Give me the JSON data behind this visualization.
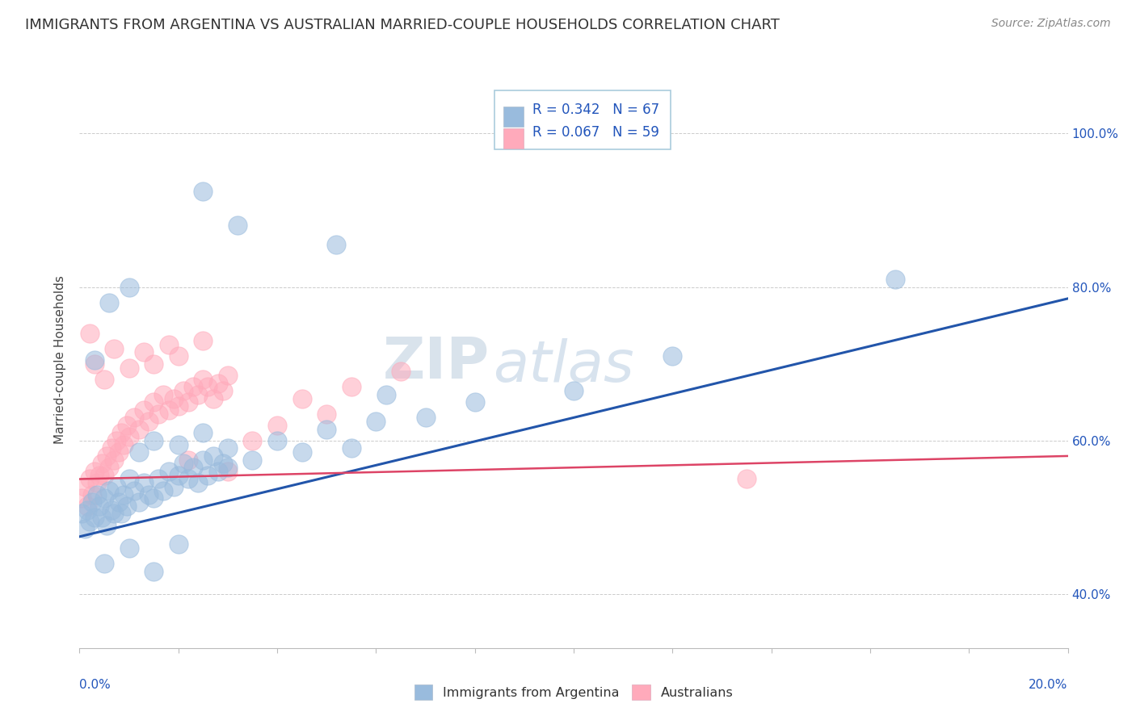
{
  "title": "IMMIGRANTS FROM ARGENTINA VS AUSTRALIAN MARRIED-COUPLE HOUSEHOLDS CORRELATION CHART",
  "source": "Source: ZipAtlas.com",
  "ylabel": "Married-couple Households",
  "legend_blue_r": "R = 0.342",
  "legend_blue_n": "N = 67",
  "legend_pink_r": "R = 0.067",
  "legend_pink_n": "N = 59",
  "legend_blue_label": "Immigrants from Argentina",
  "legend_pink_label": "Australians",
  "blue_color": "#99BBDD",
  "pink_color": "#FFAABB",
  "blue_line_color": "#2255AA",
  "pink_line_color": "#DD4466",
  "text_blue_color": "#2255BB",
  "watermark1": "ZIP",
  "watermark2": "atlas",
  "blue_scatter": [
    [
      0.05,
      50.5
    ],
    [
      0.1,
      48.5
    ],
    [
      0.15,
      51.0
    ],
    [
      0.2,
      49.5
    ],
    [
      0.25,
      52.0
    ],
    [
      0.3,
      50.0
    ],
    [
      0.35,
      53.0
    ],
    [
      0.4,
      51.5
    ],
    [
      0.45,
      50.0
    ],
    [
      0.5,
      52.5
    ],
    [
      0.55,
      49.0
    ],
    [
      0.6,
      53.5
    ],
    [
      0.65,
      51.0
    ],
    [
      0.7,
      50.5
    ],
    [
      0.75,
      54.0
    ],
    [
      0.8,
      52.0
    ],
    [
      0.85,
      50.5
    ],
    [
      0.9,
      53.0
    ],
    [
      0.95,
      51.5
    ],
    [
      1.0,
      55.0
    ],
    [
      1.1,
      53.5
    ],
    [
      1.2,
      52.0
    ],
    [
      1.3,
      54.5
    ],
    [
      1.4,
      53.0
    ],
    [
      1.5,
      52.5
    ],
    [
      1.6,
      55.0
    ],
    [
      1.7,
      53.5
    ],
    [
      1.8,
      56.0
    ],
    [
      1.9,
      54.0
    ],
    [
      2.0,
      55.5
    ],
    [
      2.1,
      57.0
    ],
    [
      2.2,
      55.0
    ],
    [
      2.3,
      56.5
    ],
    [
      2.4,
      54.5
    ],
    [
      2.5,
      57.5
    ],
    [
      2.6,
      55.5
    ],
    [
      2.7,
      58.0
    ],
    [
      2.8,
      56.0
    ],
    [
      2.9,
      57.0
    ],
    [
      3.0,
      56.5
    ],
    [
      1.2,
      58.5
    ],
    [
      1.5,
      60.0
    ],
    [
      2.0,
      59.5
    ],
    [
      2.5,
      61.0
    ],
    [
      3.0,
      59.0
    ],
    [
      3.5,
      57.5
    ],
    [
      4.0,
      60.0
    ],
    [
      4.5,
      58.5
    ],
    [
      5.0,
      61.5
    ],
    [
      5.5,
      59.0
    ],
    [
      6.0,
      62.5
    ],
    [
      7.0,
      63.0
    ],
    [
      8.0,
      65.0
    ],
    [
      10.0,
      66.5
    ],
    [
      12.0,
      71.0
    ],
    [
      16.5,
      81.0
    ],
    [
      0.3,
      70.5
    ],
    [
      0.6,
      78.0
    ],
    [
      1.0,
      80.0
    ],
    [
      2.5,
      92.5
    ],
    [
      3.2,
      88.0
    ],
    [
      5.2,
      85.5
    ],
    [
      6.2,
      66.0
    ],
    [
      0.5,
      44.0
    ],
    [
      1.0,
      46.0
    ],
    [
      1.5,
      43.0
    ],
    [
      2.0,
      46.5
    ]
  ],
  "pink_scatter": [
    [
      0.05,
      52.5
    ],
    [
      0.1,
      54.0
    ],
    [
      0.15,
      51.5
    ],
    [
      0.2,
      55.0
    ],
    [
      0.25,
      53.0
    ],
    [
      0.3,
      56.0
    ],
    [
      0.35,
      54.5
    ],
    [
      0.4,
      55.5
    ],
    [
      0.45,
      57.0
    ],
    [
      0.5,
      55.5
    ],
    [
      0.55,
      58.0
    ],
    [
      0.6,
      56.5
    ],
    [
      0.65,
      59.0
    ],
    [
      0.7,
      57.5
    ],
    [
      0.75,
      60.0
    ],
    [
      0.8,
      58.5
    ],
    [
      0.85,
      61.0
    ],
    [
      0.9,
      59.5
    ],
    [
      0.95,
      62.0
    ],
    [
      1.0,
      60.5
    ],
    [
      1.1,
      63.0
    ],
    [
      1.2,
      61.5
    ],
    [
      1.3,
      64.0
    ],
    [
      1.4,
      62.5
    ],
    [
      1.5,
      65.0
    ],
    [
      1.6,
      63.5
    ],
    [
      1.7,
      66.0
    ],
    [
      1.8,
      64.0
    ],
    [
      1.9,
      65.5
    ],
    [
      2.0,
      64.5
    ],
    [
      2.1,
      66.5
    ],
    [
      2.2,
      65.0
    ],
    [
      2.3,
      67.0
    ],
    [
      2.4,
      66.0
    ],
    [
      2.5,
      68.0
    ],
    [
      2.6,
      67.0
    ],
    [
      2.7,
      65.5
    ],
    [
      2.8,
      67.5
    ],
    [
      2.9,
      66.5
    ],
    [
      3.0,
      68.5
    ],
    [
      0.3,
      70.0
    ],
    [
      0.5,
      68.0
    ],
    [
      0.7,
      72.0
    ],
    [
      1.0,
      69.5
    ],
    [
      1.3,
      71.5
    ],
    [
      1.5,
      70.0
    ],
    [
      1.8,
      72.5
    ],
    [
      2.0,
      71.0
    ],
    [
      2.5,
      73.0
    ],
    [
      0.2,
      74.0
    ],
    [
      3.5,
      60.0
    ],
    [
      4.0,
      62.0
    ],
    [
      4.5,
      65.5
    ],
    [
      5.0,
      63.5
    ],
    [
      5.5,
      67.0
    ],
    [
      6.5,
      69.0
    ],
    [
      3.0,
      56.0
    ],
    [
      2.2,
      57.5
    ],
    [
      13.5,
      55.0
    ]
  ],
  "blue_line": {
    "x0": 0.0,
    "y0": 47.5,
    "x1": 20.0,
    "y1": 78.5
  },
  "pink_line": {
    "x0": 0.0,
    "y0": 55.0,
    "x1": 20.0,
    "y1": 58.0
  },
  "xmin": 0.0,
  "xmax": 20.0,
  "ymin": 33.0,
  "ymax": 108.0,
  "y_ticks": [
    40.0,
    60.0,
    80.0,
    100.0
  ],
  "title_fontsize": 13,
  "source_fontsize": 10,
  "ylabel_fontsize": 11,
  "tick_fontsize": 11,
  "legend_fontsize": 12
}
